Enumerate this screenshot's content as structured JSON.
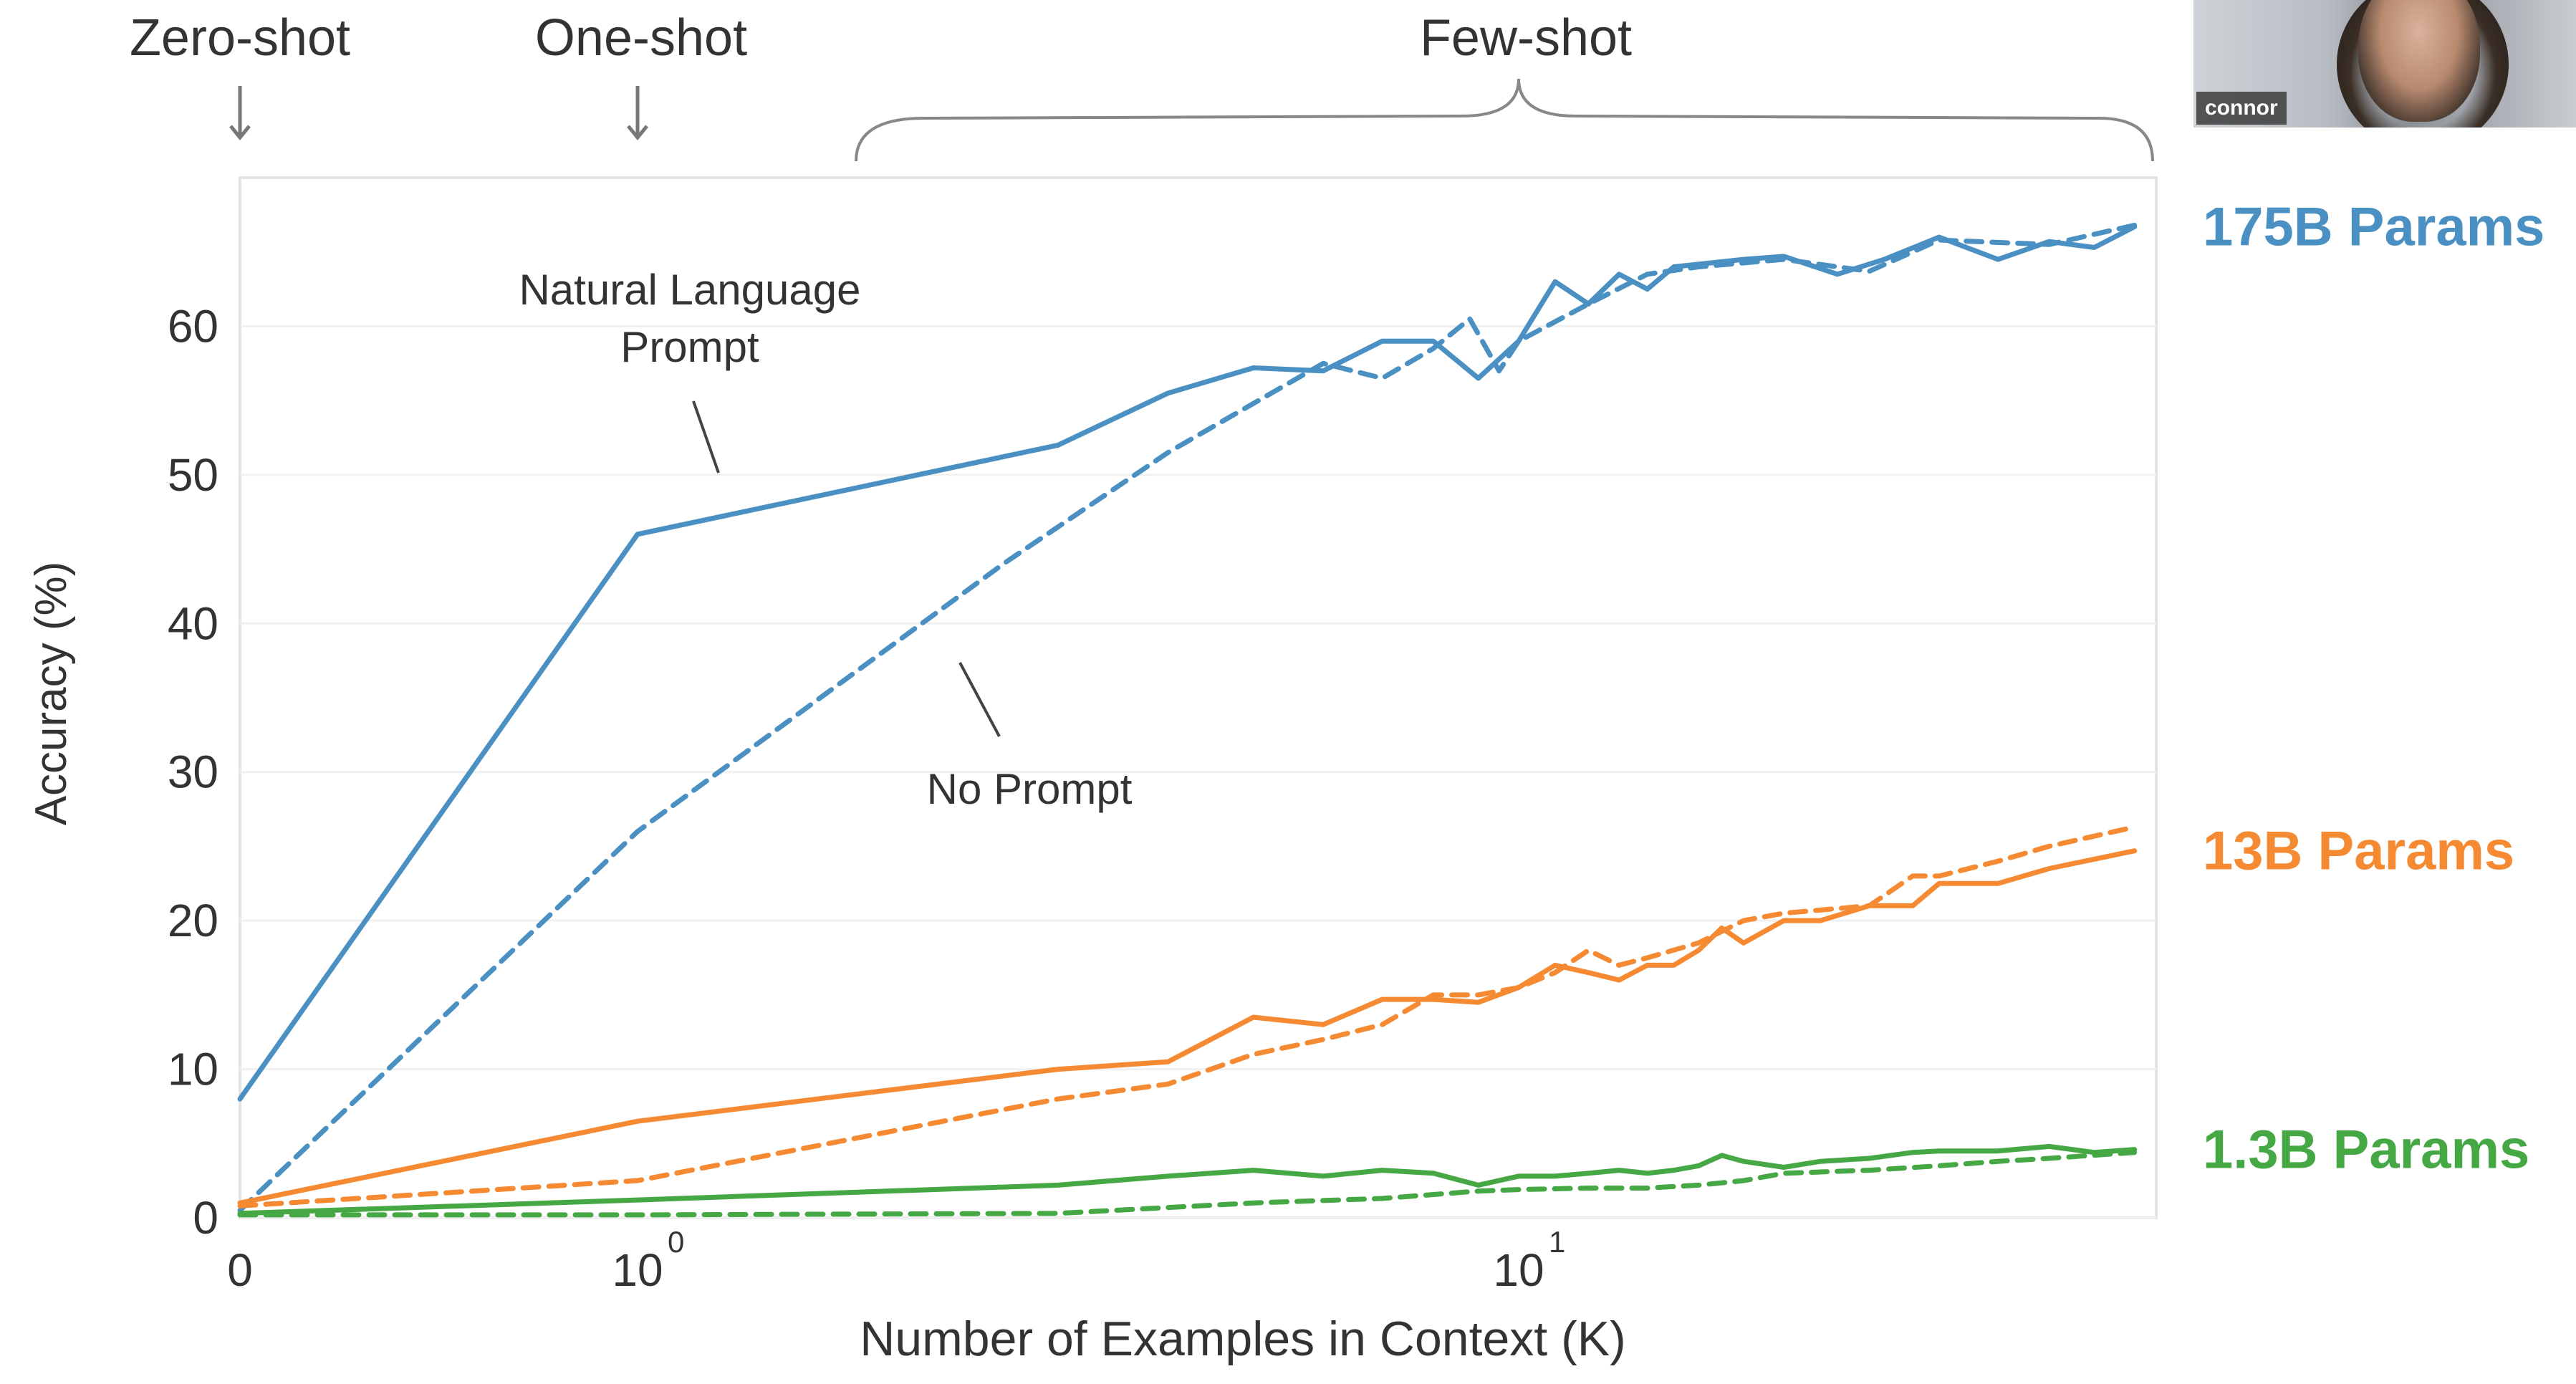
{
  "video": {
    "participant_name": "connor"
  },
  "shot_labels": [
    {
      "key": "zero",
      "text": "Zero-shot"
    },
    {
      "key": "one",
      "text": "One-shot"
    },
    {
      "key": "few",
      "text": "Few-shot"
    }
  ],
  "annotations": {
    "nl_prompt_line1": "Natural Language",
    "nl_prompt_line2": "Prompt",
    "no_prompt": "No Prompt"
  },
  "chart_data": {
    "type": "line",
    "title": "",
    "xlabel": "Number of Examples in Context  (K)",
    "ylabel": "Accuracy (%)",
    "ylim": [
      0,
      70
    ],
    "xscale": "log (0 shown at left edge)",
    "xlim": [
      0,
      50
    ],
    "yticks": [
      0,
      10,
      20,
      30,
      40,
      50,
      60
    ],
    "xticks": [
      {
        "value": 0,
        "label": "0",
        "sup": ""
      },
      {
        "value": 1,
        "label": "10",
        "sup": "0"
      },
      {
        "value": 10,
        "label": "10",
        "sup": "1"
      }
    ],
    "grid": true,
    "colors": {
      "175B": "#4a90c2",
      "13B": "#f58a33",
      "1.3B": "#45a845"
    },
    "groups": [
      {
        "name": "175B Params",
        "color": "#4a90c2",
        "series": [
          {
            "style": "solid",
            "points": [
              [
                0,
                8
              ],
              [
                1,
                46
              ],
              [
                3,
                52
              ],
              [
                4,
                55.5
              ],
              [
                5,
                57.2
              ],
              [
                6,
                57
              ],
              [
                7,
                59
              ],
              [
                8,
                59
              ],
              [
                9,
                56.5
              ],
              [
                10,
                59
              ],
              [
                11,
                63
              ],
              [
                12,
                61.5
              ],
              [
                13,
                63.5
              ],
              [
                14,
                62.5
              ],
              [
                15,
                64
              ],
              [
                18,
                64.5
              ],
              [
                20,
                64.7
              ],
              [
                23,
                63.5
              ],
              [
                26,
                64.5
              ],
              [
                30,
                66
              ],
              [
                35,
                64.5
              ],
              [
                40,
                65.7
              ],
              [
                45,
                65.3
              ],
              [
                50,
                66.7
              ]
            ]
          },
          {
            "style": "dashed",
            "points": [
              [
                0,
                0.5
              ],
              [
                1,
                26
              ],
              [
                2.6,
                44
              ],
              [
                4,
                51.5
              ],
              [
                6,
                57.5
              ],
              [
                7,
                56.5
              ],
              [
                8,
                58.5
              ],
              [
                8.8,
                60.5
              ],
              [
                9.5,
                57
              ],
              [
                10,
                59
              ],
              [
                12,
                61.5
              ],
              [
                14,
                63.5
              ],
              [
                16,
                64
              ],
              [
                20,
                64.5
              ],
              [
                25,
                63.7
              ],
              [
                30,
                65.8
              ],
              [
                40,
                65.5
              ],
              [
                50,
                66.8
              ]
            ]
          }
        ]
      },
      {
        "name": "13B Params",
        "color": "#f58a33",
        "series": [
          {
            "style": "solid",
            "points": [
              [
                0,
                1
              ],
              [
                1,
                6.5
              ],
              [
                3,
                10
              ],
              [
                4,
                10.5
              ],
              [
                5,
                13.5
              ],
              [
                6,
                13
              ],
              [
                7,
                14.7
              ],
              [
                8,
                14.7
              ],
              [
                9,
                14.5
              ],
              [
                10,
                15.5
              ],
              [
                11,
                17
              ],
              [
                12,
                16.5
              ],
              [
                13,
                16
              ],
              [
                14,
                17
              ],
              [
                15,
                17
              ],
              [
                16,
                18
              ],
              [
                17,
                19.5
              ],
              [
                18,
                18.5
              ],
              [
                20,
                20
              ],
              [
                22,
                20
              ],
              [
                25,
                21
              ],
              [
                28,
                21
              ],
              [
                30,
                22.5
              ],
              [
                35,
                22.5
              ],
              [
                40,
                23.5
              ],
              [
                50,
                24.7
              ]
            ]
          },
          {
            "style": "dashed",
            "points": [
              [
                0,
                0.8
              ],
              [
                1,
                2.5
              ],
              [
                3,
                8
              ],
              [
                4,
                9
              ],
              [
                5,
                11
              ],
              [
                6,
                12
              ],
              [
                7,
                13
              ],
              [
                8,
                15
              ],
              [
                9,
                15
              ],
              [
                10,
                15.5
              ],
              [
                11,
                16.5
              ],
              [
                12,
                18
              ],
              [
                13,
                17
              ],
              [
                14,
                17.5
              ],
              [
                16,
                18.5
              ],
              [
                18,
                20
              ],
              [
                20,
                20.5
              ],
              [
                25,
                21
              ],
              [
                28,
                23
              ],
              [
                30,
                23
              ],
              [
                35,
                24
              ],
              [
                40,
                25
              ],
              [
                50,
                26.3
              ]
            ]
          }
        ]
      },
      {
        "name": "1.3B Params",
        "color": "#45a845",
        "series": [
          {
            "style": "solid",
            "points": [
              [
                0,
                0.3
              ],
              [
                1,
                1.2
              ],
              [
                3,
                2.2
              ],
              [
                4,
                2.8
              ],
              [
                5,
                3.2
              ],
              [
                6,
                2.8
              ],
              [
                7,
                3.2
              ],
              [
                8,
                3
              ],
              [
                9,
                2.2
              ],
              [
                10,
                2.8
              ],
              [
                11,
                2.8
              ],
              [
                12,
                3
              ],
              [
                13,
                3.2
              ],
              [
                14,
                3
              ],
              [
                15,
                3.2
              ],
              [
                16,
                3.5
              ],
              [
                17,
                4.2
              ],
              [
                18,
                3.8
              ],
              [
                20,
                3.4
              ],
              [
                22,
                3.8
              ],
              [
                25,
                4
              ],
              [
                28,
                4.4
              ],
              [
                30,
                4.5
              ],
              [
                35,
                4.5
              ],
              [
                40,
                4.8
              ],
              [
                45,
                4.4
              ],
              [
                50,
                4.6
              ]
            ]
          },
          {
            "style": "dashed",
            "points": [
              [
                0,
                0.2
              ],
              [
                1,
                0.2
              ],
              [
                3,
                0.3
              ],
              [
                5,
                1
              ],
              [
                7,
                1.3
              ],
              [
                9,
                1.8
              ],
              [
                10,
                1.9
              ],
              [
                12,
                2
              ],
              [
                14,
                2
              ],
              [
                16,
                2.2
              ],
              [
                18,
                2.5
              ],
              [
                20,
                3
              ],
              [
                25,
                3.2
              ],
              [
                30,
                3.5
              ],
              [
                35,
                3.8
              ],
              [
                40,
                4
              ],
              [
                50,
                4.4
              ]
            ]
          }
        ]
      }
    ]
  }
}
